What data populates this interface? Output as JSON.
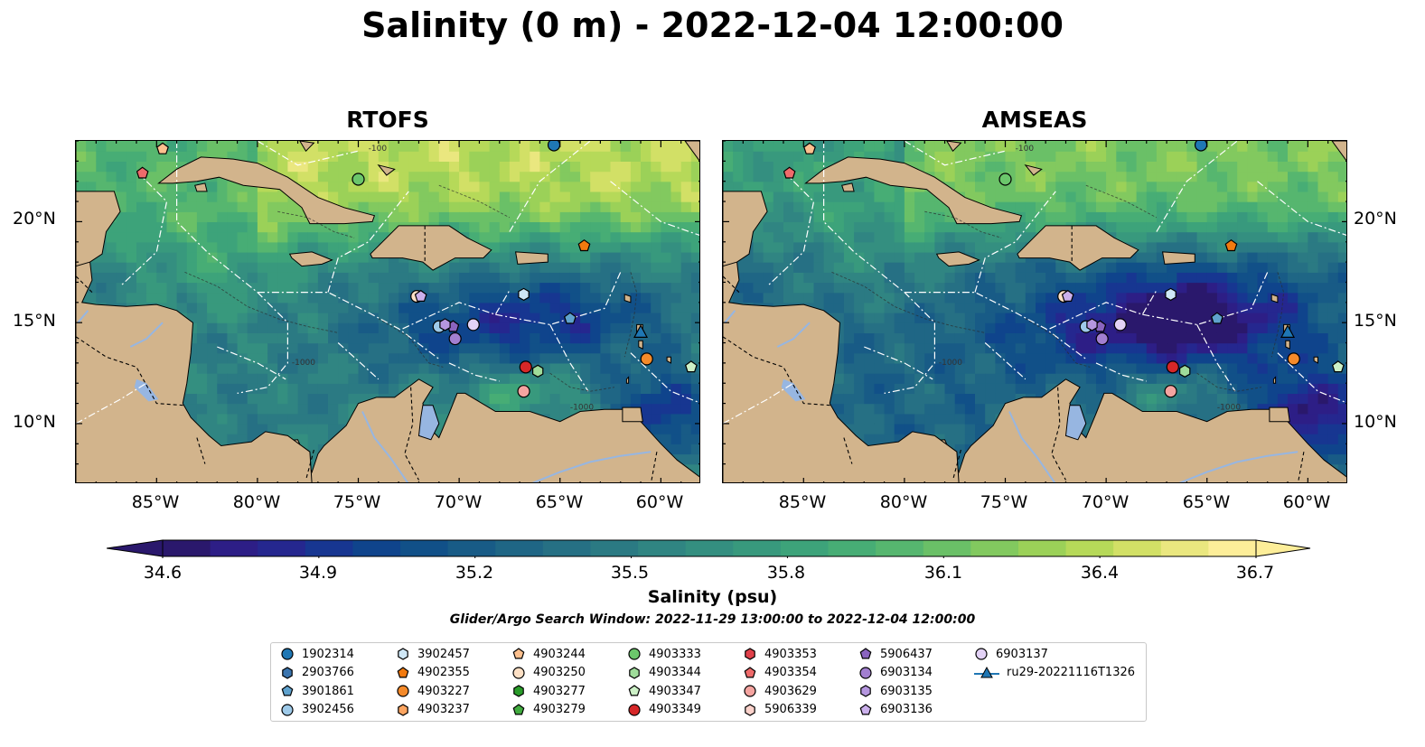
{
  "title": "Salinity (0 m) - 2022-12-04 12:00:00",
  "panels": [
    {
      "title": "RTOFS",
      "variant": "rtofs"
    },
    {
      "title": "AMSEAS",
      "variant": "amseas"
    }
  ],
  "map": {
    "lon_range": [
      -89,
      -58
    ],
    "lat_range": [
      7,
      24
    ],
    "x_ticks": [
      "85°W",
      "80°W",
      "75°W",
      "70°W",
      "65°W",
      "60°W"
    ],
    "y_ticks": [
      "20°N",
      "15°N",
      "10°N"
    ],
    "x_tick_lon": [
      -85,
      -80,
      -75,
      -70,
      -65,
      -60
    ],
    "y_tick_lat": [
      20,
      15,
      10
    ],
    "contour_labels": [
      "-100",
      "-1000"
    ],
    "land_color": "#d2b48c",
    "water_body_color": "#97b6e1"
  },
  "colorbar": {
    "label": "Salinity (psu)",
    "ticks": [
      "34.6",
      "34.9",
      "35.2",
      "35.5",
      "35.8",
      "36.1",
      "36.4",
      "36.7"
    ],
    "range": [
      34.6,
      36.7
    ],
    "extend": "both",
    "colormap": "haline",
    "colors": [
      "#2a186c",
      "#2d1e86",
      "#25278f",
      "#173691",
      "#0f448c",
      "#115088",
      "#185b86",
      "#1f6685",
      "#267084",
      "#2b7a83",
      "#308582",
      "#348f80",
      "#38997d",
      "#3da37a",
      "#47ad75",
      "#56b66f",
      "#6ac067",
      "#82c95f",
      "#9bd158",
      "#b6d959",
      "#d2e066",
      "#eae77f",
      "#fdee99"
    ]
  },
  "search_window": "Glider/Argo Search Window: 2022-11-29 13:00:00 to 2022-12-04 12:00:00",
  "legend": {
    "items": [
      {
        "label": "1902314",
        "marker": "circle",
        "color": "#1f77b4"
      },
      {
        "label": "2903766",
        "marker": "hexagon",
        "color": "#3b75af"
      },
      {
        "label": "3901861",
        "marker": "pentagon",
        "color": "#5fa2ce"
      },
      {
        "label": "3902456",
        "marker": "circle",
        "color": "#9ecae9"
      },
      {
        "label": "3902457",
        "marker": "hexagon",
        "color": "#cfe7f6"
      },
      {
        "label": "4902355",
        "marker": "pentagon",
        "color": "#f27a0f"
      },
      {
        "label": "4903227",
        "marker": "circle",
        "color": "#f58a2a"
      },
      {
        "label": "4903237",
        "marker": "hexagon",
        "color": "#fca561"
      },
      {
        "label": "4903244",
        "marker": "pentagon",
        "color": "#fdc08e"
      },
      {
        "label": "4903250",
        "marker": "circle",
        "color": "#fde0c5"
      },
      {
        "label": "4903277",
        "marker": "hexagon",
        "color": "#2a9c2a"
      },
      {
        "label": "4903279",
        "marker": "pentagon",
        "color": "#41ab3f"
      },
      {
        "label": "4903333",
        "marker": "circle",
        "color": "#6bc66b"
      },
      {
        "label": "4903344",
        "marker": "hexagon",
        "color": "#9fdc9a"
      },
      {
        "label": "4903347",
        "marker": "pentagon",
        "color": "#cdf1c7"
      },
      {
        "label": "4903349",
        "marker": "circle",
        "color": "#d62728"
      },
      {
        "label": "4903353",
        "marker": "hexagon",
        "color": "#e0404a"
      },
      {
        "label": "4903354",
        "marker": "pentagon",
        "color": "#ef6b6b"
      },
      {
        "label": "4903629",
        "marker": "circle",
        "color": "#f4a4a0"
      },
      {
        "label": "5906339",
        "marker": "hexagon",
        "color": "#fbd2cb"
      },
      {
        "label": "5906437",
        "marker": "pentagon",
        "color": "#8a64bf"
      },
      {
        "label": "6903134",
        "marker": "circle",
        "color": "#a27fd0"
      },
      {
        "label": "6903135",
        "marker": "hexagon",
        "color": "#b596df"
      },
      {
        "label": "6903136",
        "marker": "pentagon",
        "color": "#cbb0ec"
      },
      {
        "label": "6903137",
        "marker": "circle",
        "color": "#e3d2f6"
      },
      {
        "label": "ru29-20221116T1326",
        "marker": "triangle-line",
        "color": "#1f77b4"
      }
    ]
  },
  "floats": [
    {
      "id": "1902314",
      "lon": -65.3,
      "lat": 23.8
    },
    {
      "id": "3901861",
      "lon": -64.5,
      "lat": 15.2
    },
    {
      "id": "3902456",
      "lon": -71.0,
      "lat": 14.8
    },
    {
      "id": "3902457",
      "lon": -66.8,
      "lat": 16.4
    },
    {
      "id": "4902355",
      "lon": -63.8,
      "lat": 18.8
    },
    {
      "id": "4903227",
      "lon": -60.7,
      "lat": 13.2
    },
    {
      "id": "4903244",
      "lon": -84.7,
      "lat": 23.6
    },
    {
      "id": "4903250",
      "lon": -72.1,
      "lat": 16.3
    },
    {
      "id": "4903333",
      "lon": -75.0,
      "lat": 22.1
    },
    {
      "id": "4903344",
      "lon": -66.1,
      "lat": 12.6
    },
    {
      "id": "4903347",
      "lon": -58.5,
      "lat": 12.8
    },
    {
      "id": "4903349",
      "lon": -66.7,
      "lat": 12.8
    },
    {
      "id": "4903354",
      "lon": -85.7,
      "lat": 22.4
    },
    {
      "id": "4903629",
      "lon": -66.8,
      "lat": 11.6
    },
    {
      "id": "5906437",
      "lon": -70.3,
      "lat": 14.8
    },
    {
      "id": "6903134",
      "lon": -70.2,
      "lat": 14.2
    },
    {
      "id": "6903135",
      "lon": -70.7,
      "lat": 14.9
    },
    {
      "id": "6903136",
      "lon": -71.9,
      "lat": 16.3
    },
    {
      "id": "6903137",
      "lon": -69.3,
      "lat": 14.9
    }
  ],
  "glider": {
    "id": "ru29-20221116T1326",
    "lon": -61.0,
    "lat": 14.5
  }
}
